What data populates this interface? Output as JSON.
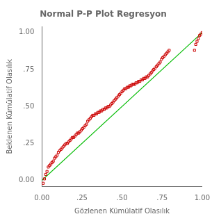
{
  "chart_data": {
    "type": "scatter",
    "title": "Normal P-P Plot Regresyon",
    "xlabel": "Gözlenen Kümülatif Olasılık",
    "ylabel": "Beklenen Kümülatif Olasılık",
    "xlim": [
      0.0,
      1.0
    ],
    "ylim": [
      -0.04,
      1.04
    ],
    "xticks": [
      {
        "value": 0.0,
        "label": "0.00"
      },
      {
        "value": 0.25,
        "label": ".25"
      },
      {
        "value": 0.5,
        "label": ".50"
      },
      {
        "value": 0.75,
        "label": ".75"
      },
      {
        "value": 1.0,
        "label": "1.00"
      }
    ],
    "yticks": [
      {
        "value": 0.0,
        "label": "0.00"
      },
      {
        "value": 0.25,
        "label": ".25"
      },
      {
        "value": 0.5,
        "label": ".50"
      },
      {
        "value": 0.75,
        "label": ".75"
      },
      {
        "value": 1.0,
        "label": "1.00"
      }
    ],
    "grid": false,
    "series": [
      {
        "type": "line",
        "color": "#00bb00",
        "x": [
          0,
          1
        ],
        "values": [
          0,
          1
        ]
      },
      {
        "type": "scatter",
        "color": "#cc0000",
        "marker": "square",
        "x": [
          0.008,
          0.016,
          0.024,
          0.032,
          0.04,
          0.048,
          0.056,
          0.063,
          0.071,
          0.079,
          0.087,
          0.095,
          0.103,
          0.111,
          0.119,
          0.127,
          0.135,
          0.143,
          0.151,
          0.159,
          0.167,
          0.175,
          0.183,
          0.19,
          0.198,
          0.206,
          0.214,
          0.222,
          0.23,
          0.238,
          0.246,
          0.254,
          0.262,
          0.27,
          0.278,
          0.286,
          0.294,
          0.302,
          0.31,
          0.317,
          0.325,
          0.333,
          0.341,
          0.349,
          0.357,
          0.365,
          0.373,
          0.381,
          0.389,
          0.397,
          0.405,
          0.413,
          0.421,
          0.429,
          0.437,
          0.444,
          0.452,
          0.46,
          0.468,
          0.476,
          0.484,
          0.492,
          0.5,
          0.508,
          0.516,
          0.524,
          0.532,
          0.54,
          0.548,
          0.556,
          0.563,
          0.571,
          0.579,
          0.587,
          0.595,
          0.603,
          0.611,
          0.619,
          0.627,
          0.635,
          0.643,
          0.651,
          0.659,
          0.667,
          0.675,
          0.683,
          0.69,
          0.698,
          0.706,
          0.714,
          0.722,
          0.73,
          0.738,
          0.746,
          0.754,
          0.762,
          0.77,
          0.778,
          0.786,
          0.794,
          0.952,
          0.96,
          0.968,
          0.976,
          0.984,
          0.992,
          1.0
        ],
        "values": [
          -0.02,
          0.01,
          0.04,
          0.06,
          0.09,
          0.1,
          0.11,
          0.12,
          0.13,
          0.15,
          0.16,
          0.17,
          0.19,
          0.2,
          0.21,
          0.22,
          0.23,
          0.24,
          0.25,
          0.25,
          0.26,
          0.27,
          0.28,
          0.29,
          0.29,
          0.3,
          0.31,
          0.32,
          0.32,
          0.33,
          0.34,
          0.35,
          0.36,
          0.37,
          0.38,
          0.4,
          0.41,
          0.42,
          0.43,
          0.44,
          0.44,
          0.45,
          0.45,
          0.46,
          0.46,
          0.47,
          0.47,
          0.48,
          0.48,
          0.49,
          0.49,
          0.5,
          0.5,
          0.51,
          0.52,
          0.53,
          0.54,
          0.55,
          0.56,
          0.57,
          0.58,
          0.59,
          0.6,
          0.61,
          0.62,
          0.62,
          0.63,
          0.63,
          0.64,
          0.64,
          0.65,
          0.65,
          0.65,
          0.66,
          0.66,
          0.67,
          0.67,
          0.68,
          0.68,
          0.69,
          0.69,
          0.7,
          0.7,
          0.71,
          0.72,
          0.73,
          0.74,
          0.75,
          0.76,
          0.77,
          0.78,
          0.79,
          0.8,
          0.82,
          0.83,
          0.84,
          0.85,
          0.86,
          0.87,
          0.88,
          0.88,
          0.92,
          0.94,
          0.96,
          0.98,
          0.99,
          1.0
        ]
      }
    ]
  }
}
